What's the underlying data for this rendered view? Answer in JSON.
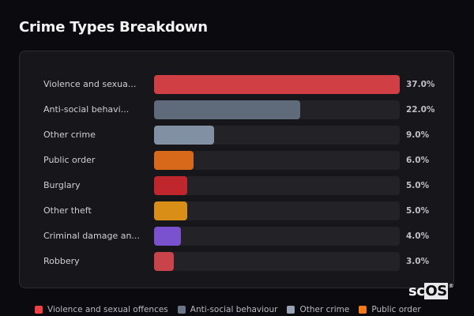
{
  "title": "Crime Types Breakdown",
  "chart_data": {
    "type": "bar",
    "orientation": "horizontal",
    "title": "Crime Types Breakdown",
    "xlabel": "",
    "ylabel": "",
    "xlim": [
      0,
      37
    ],
    "grid": false,
    "legend_position": "bottom",
    "categories": [
      "Violence and sexua...",
      "Anti-social behavi...",
      "Other crime",
      "Public order",
      "Burglary",
      "Other theft",
      "Criminal damage an...",
      "Robbery"
    ],
    "values": [
      37.0,
      22.0,
      9.0,
      6.0,
      5.0,
      5.0,
      4.0,
      3.0
    ],
    "value_labels": [
      "37.0%",
      "22.0%",
      "9.0%",
      "6.0%",
      "5.0%",
      "5.0%",
      "4.0%",
      "3.0%"
    ],
    "colors": [
      "#cf3f43",
      "#5f6b7b",
      "#8290a4",
      "#d8681a",
      "#c0272d",
      "#d88e17",
      "#7a52d0",
      "#c9434a"
    ],
    "legend": [
      "Violence and sexual offences",
      "Anti-social behaviour",
      "Other crime",
      "Public order"
    ]
  },
  "rows": [
    {
      "label": "Violence and sexua...",
      "pct": "37.0%",
      "value": 37.0,
      "color": "#cf3f43"
    },
    {
      "label": "Anti-social behavi...",
      "pct": "22.0%",
      "value": 22.0,
      "color": "#5f6b7b"
    },
    {
      "label": "Other crime",
      "pct": "9.0%",
      "value": 9.0,
      "color": "#8290a4"
    },
    {
      "label": "Public order",
      "pct": "6.0%",
      "value": 6.0,
      "color": "#d8681a"
    },
    {
      "label": "Burglary",
      "pct": "5.0%",
      "value": 5.0,
      "color": "#c0272d"
    },
    {
      "label": "Other theft",
      "pct": "5.0%",
      "value": 5.0,
      "color": "#d88e17"
    },
    {
      "label": "Criminal damage an...",
      "pct": "4.0%",
      "value": 4.0,
      "color": "#7a52d0"
    },
    {
      "label": "Robbery",
      "pct": "3.0%",
      "value": 3.0,
      "color": "#c9434a"
    }
  ],
  "legend": [
    {
      "label": "Violence and sexual offences",
      "color": "#ef4046"
    },
    {
      "label": "Anti-social behaviour",
      "color": "#6b7588"
    },
    {
      "label": "Other crime",
      "color": "#98a4b6"
    },
    {
      "label": "Public order",
      "color": "#f27a1a"
    }
  ],
  "logo": {
    "text_a": "sc",
    "text_b": "OS",
    "mark": "®"
  }
}
